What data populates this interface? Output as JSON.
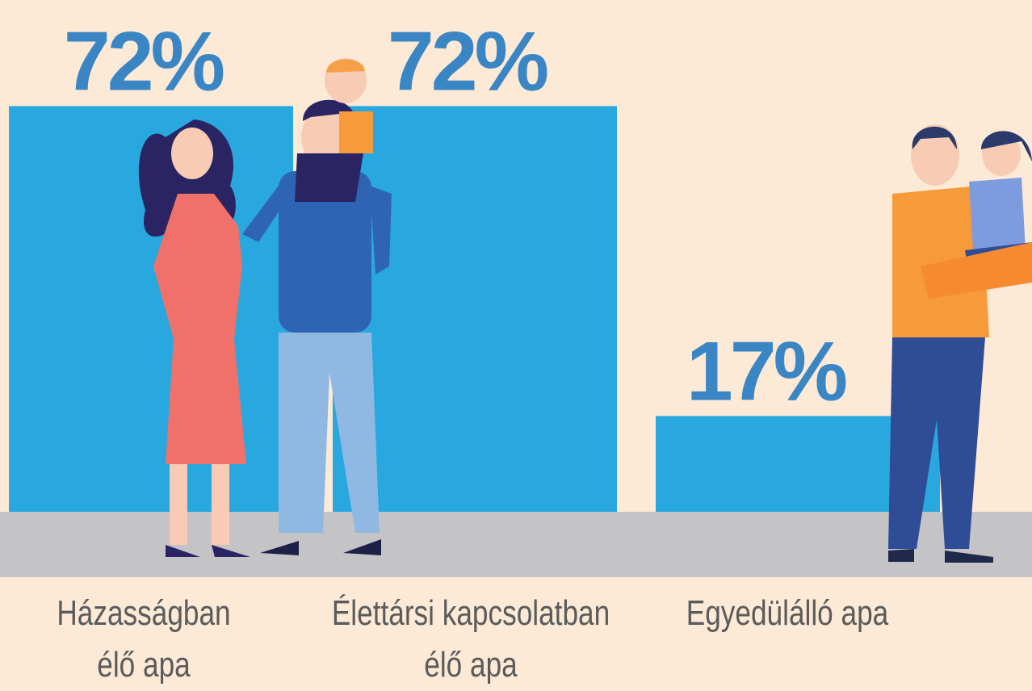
{
  "chart_data": {
    "type": "bar",
    "categories": [
      "Házasságban élő apa",
      "Élettársi kapcsolatban élő apa",
      "Egyedülálló apa"
    ],
    "values": [
      72,
      72,
      17
    ],
    "value_labels": [
      "72%",
      "72%",
      "17%"
    ],
    "color": "#29a8e0"
  }
}
